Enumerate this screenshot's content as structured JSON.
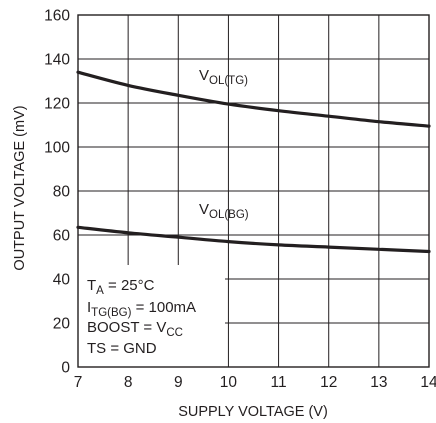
{
  "chart_data": {
    "type": "line",
    "xlabel": "SUPPLY VOLTAGE (V)",
    "ylabel": "OUTPUT VOLTAGE (mV)",
    "xlim": [
      7,
      14
    ],
    "ylim": [
      0,
      160
    ],
    "x_ticks": [
      "7",
      "8",
      "9",
      "10",
      "11",
      "12",
      "13",
      "14"
    ],
    "y_ticks": [
      "0",
      "20",
      "40",
      "60",
      "80",
      "100",
      "120",
      "140",
      "160"
    ],
    "grid": true,
    "series": [
      {
        "name": "V_OL(TG)",
        "label_main": "V",
        "label_sub": "OL(TG)",
        "x": [
          7,
          8,
          9,
          10,
          11,
          12,
          13,
          14
        ],
        "y": [
          134,
          128,
          123.5,
          119.5,
          116.5,
          114,
          111.5,
          109.5
        ]
      },
      {
        "name": "V_OL(BG)",
        "label_main": "V",
        "label_sub": "OL(BG)",
        "x": [
          7,
          8,
          9,
          10,
          11,
          12,
          13,
          14
        ],
        "y": [
          63.5,
          61,
          59,
          57,
          55.5,
          54.5,
          53.5,
          52.5
        ]
      }
    ],
    "annotations": {
      "line1_main": "T",
      "line1_sub": "A",
      "line1_rest": " = 25°C",
      "line2_main": "I",
      "line2_sub": "TG(BG)",
      "line2_rest": " = 100mA",
      "line3_main": "BOOST = V",
      "line3_sub": "CC",
      "line4": "TS = GND"
    }
  }
}
